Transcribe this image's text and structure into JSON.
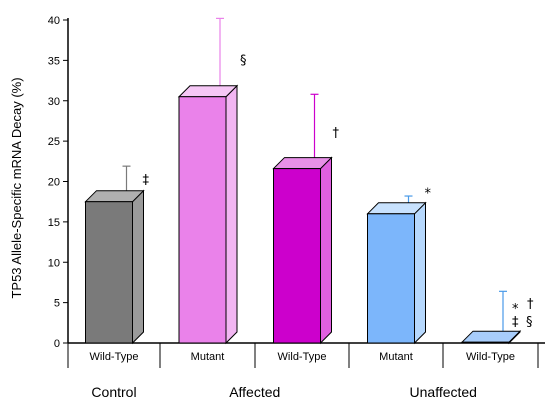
{
  "chart_data": {
    "type": "bar",
    "ylabel": "TP53 Allele-Specific mRNA Decay (%)",
    "ylim": [
      0,
      40
    ],
    "yticks": [
      0,
      5,
      10,
      15,
      20,
      25,
      30,
      35,
      40
    ],
    "style": "3d-bars-with-upper-error-bars",
    "grid": false,
    "bars": [
      {
        "category": "Wild-Type",
        "group": "Control",
        "value": 17.5,
        "error_upper": 21.9,
        "color": "#7a7a7a",
        "side_color": "#9a9a9a",
        "top_color": "#b0b0b0",
        "marks": [
          "‡"
        ]
      },
      {
        "category": "Mutant",
        "group": "Affected",
        "value": 30.5,
        "error_upper": 40.2,
        "color": "#ea82ea",
        "side_color": "#f2b6f2",
        "top_color": "#f6c8f6",
        "marks": [
          "§"
        ]
      },
      {
        "category": "Wild-Type",
        "group": "Affected",
        "value": 21.6,
        "error_upper": 30.8,
        "color": "#cc00cc",
        "side_color": "#e060e0",
        "top_color": "#e890e8",
        "marks": [
          "†"
        ]
      },
      {
        "category": "Mutant",
        "group": "Unaffected",
        "value": 16.0,
        "error_upper": 18.2,
        "color": "#7cb6fb",
        "side_color": "#b6d8fd",
        "top_color": "#c8e2fe",
        "marks": [
          "*"
        ]
      },
      {
        "category": "Wild-Type",
        "group": "Unaffected",
        "value": 0.1,
        "error_upper": 6.4,
        "color": "#7cb6fb",
        "side_color": "#b6d8fd",
        "top_color": "#a8cdfb",
        "marks": [
          "*",
          "†",
          "‡",
          "§"
        ]
      }
    ],
    "groups": [
      {
        "label": "Control",
        "bars": [
          0
        ]
      },
      {
        "label": "Affected",
        "bars": [
          1,
          2
        ]
      },
      {
        "label": "Unaffected",
        "bars": [
          3,
          4
        ]
      }
    ]
  }
}
